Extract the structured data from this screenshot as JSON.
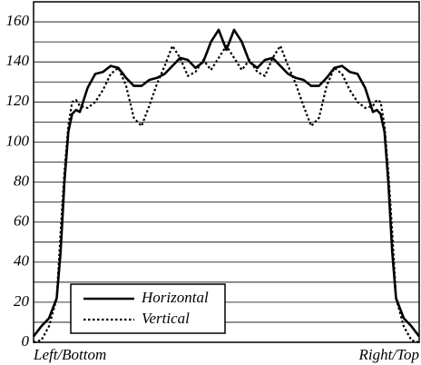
{
  "chart_data": {
    "type": "line",
    "x": [
      0,
      2,
      4,
      6,
      7,
      8,
      9,
      10,
      11,
      12,
      14,
      16,
      18,
      20,
      22,
      24,
      26,
      28,
      30,
      32,
      34,
      36,
      38,
      40,
      42,
      44,
      46,
      48,
      50,
      52,
      54,
      56,
      58,
      60,
      62,
      64,
      66,
      68,
      70,
      72,
      74,
      76,
      78,
      80,
      82,
      84,
      86,
      88,
      89,
      90,
      91,
      92,
      93,
      94,
      96,
      98,
      100
    ],
    "series": [
      {
        "name": "Horizontal",
        "color": "#000000",
        "dash": "solid",
        "values": [
          3,
          8,
          12,
          22,
          45,
          80,
          105,
          114,
          116,
          115,
          127,
          134,
          135,
          138,
          137,
          132,
          128,
          128,
          131,
          132,
          134,
          138,
          142,
          141,
          137,
          140,
          150,
          156,
          146,
          156,
          150,
          140,
          137,
          141,
          142,
          138,
          134,
          132,
          131,
          128,
          128,
          132,
          137,
          138,
          135,
          134,
          127,
          115,
          116,
          114,
          105,
          80,
          45,
          22,
          12,
          8,
          3
        ]
      },
      {
        "name": "Vertical",
        "color": "#000000",
        "dash": "dotted",
        "values": [
          0,
          1,
          8,
          22,
          55,
          85,
          108,
          120,
          121,
          118,
          117,
          120,
          126,
          134,
          137,
          128,
          112,
          108,
          118,
          129,
          138,
          148,
          142,
          133,
          135,
          141,
          136,
          142,
          148,
          142,
          136,
          141,
          135,
          133,
          142,
          148,
          138,
          129,
          118,
          108,
          112,
          128,
          137,
          134,
          126,
          120,
          117,
          118,
          121,
          120,
          108,
          85,
          55,
          22,
          8,
          1,
          0
        ]
      }
    ],
    "xlim": [
      0,
      100
    ],
    "xticks": [
      {
        "value": 0,
        "label": "Left/Bottom"
      },
      {
        "value": 100,
        "label": "Right/Top"
      }
    ],
    "ylim": [
      0,
      170
    ],
    "yticks": [
      0,
      20,
      40,
      60,
      80,
      100,
      120,
      140,
      160
    ],
    "minor_yticks": [
      10,
      30,
      50,
      70,
      90,
      110,
      130,
      150,
      170
    ],
    "grid": true,
    "legend": "lower left"
  }
}
